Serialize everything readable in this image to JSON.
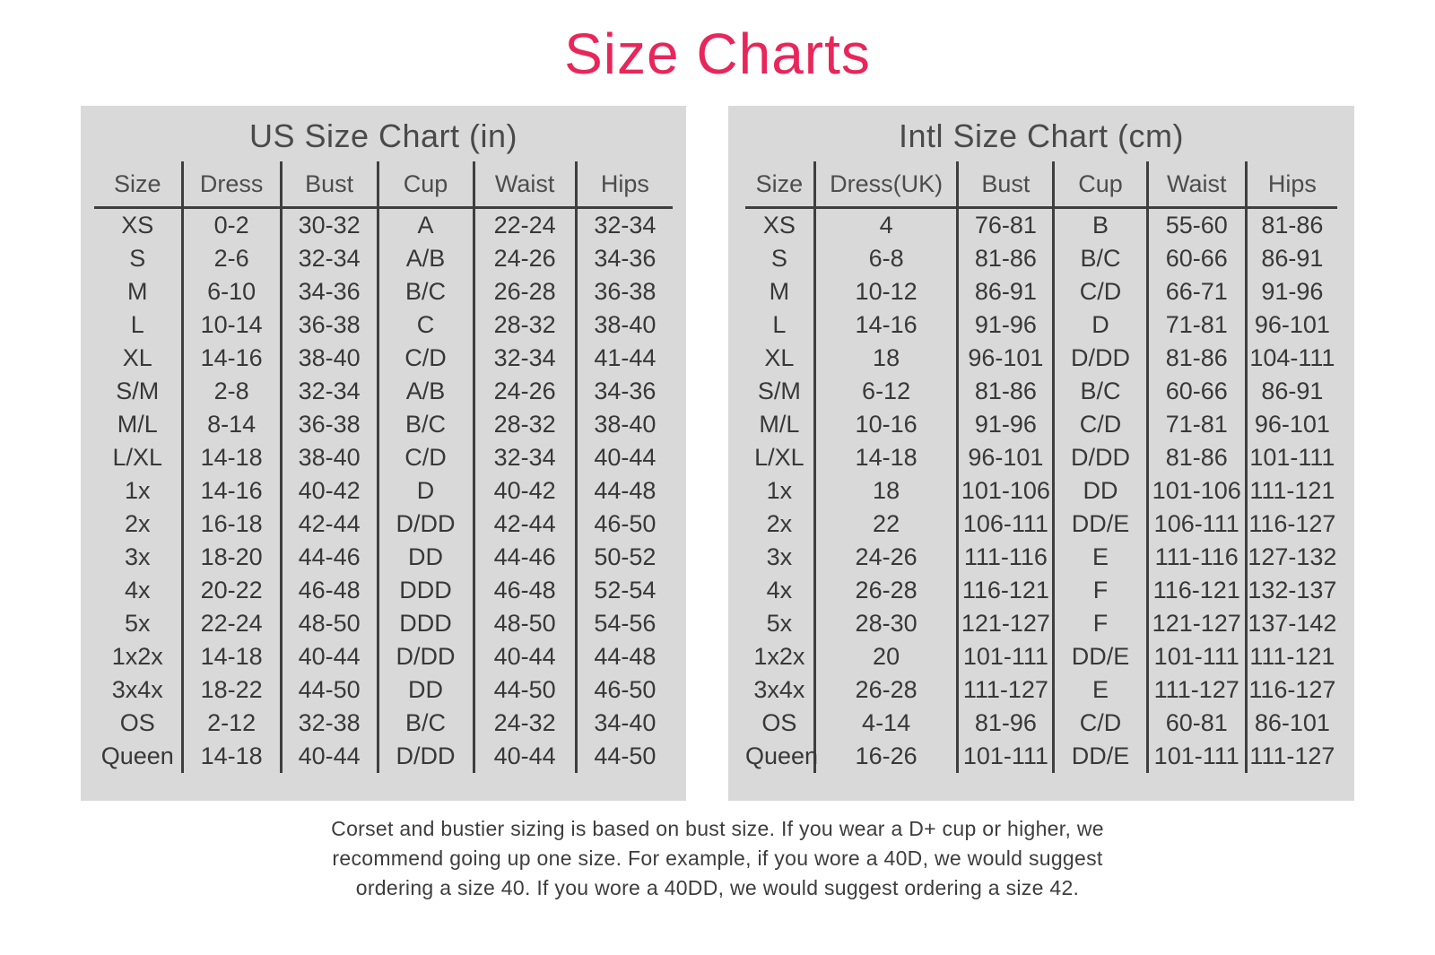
{
  "page": {
    "title": "Size Charts",
    "note_lines": [
      "Corset and bustier sizing is based on bust size. If you wear a D+ cup or higher, we",
      "recommend going up one size. For example, if you wore a 40D, we would suggest",
      "ordering a size 40. If you wore a 40DD, we would suggest ordering a size 42."
    ]
  },
  "colors": {
    "accent_pink": "#e8265a",
    "panel_background": "#d9d9d9",
    "table_line": "#3f3f3f",
    "body_text": "#383838",
    "header_text": "#4d4d4d"
  },
  "charts": [
    {
      "title": "US Size Chart (in)",
      "columns": [
        "Size",
        "Dress",
        "Bust",
        "Cup",
        "Waist",
        "Hips"
      ],
      "rows": [
        [
          "XS",
          "0-2",
          "30-32",
          "A",
          "22-24",
          "32-34"
        ],
        [
          "S",
          "2-6",
          "32-34",
          "A/B",
          "24-26",
          "34-36"
        ],
        [
          "M",
          "6-10",
          "34-36",
          "B/C",
          "26-28",
          "36-38"
        ],
        [
          "L",
          "10-14",
          "36-38",
          "C",
          "28-32",
          "38-40"
        ],
        [
          "XL",
          "14-16",
          "38-40",
          "C/D",
          "32-34",
          "41-44"
        ],
        [
          "S/M",
          "2-8",
          "32-34",
          "A/B",
          "24-26",
          "34-36"
        ],
        [
          "M/L",
          "8-14",
          "36-38",
          "B/C",
          "28-32",
          "38-40"
        ],
        [
          "L/XL",
          "14-18",
          "38-40",
          "C/D",
          "32-34",
          "40-44"
        ],
        [
          "1x",
          "14-16",
          "40-42",
          "D",
          "40-42",
          "44-48"
        ],
        [
          "2x",
          "16-18",
          "42-44",
          "D/DD",
          "42-44",
          "46-50"
        ],
        [
          "3x",
          "18-20",
          "44-46",
          "DD",
          "44-46",
          "50-52"
        ],
        [
          "4x",
          "20-22",
          "46-48",
          "DDD",
          "46-48",
          "52-54"
        ],
        [
          "5x",
          "22-24",
          "48-50",
          "DDD",
          "48-50",
          "54-56"
        ],
        [
          "1x2x",
          "14-18",
          "40-44",
          "D/DD",
          "40-44",
          "44-48"
        ],
        [
          "3x4x",
          "18-22",
          "44-50",
          "DD",
          "44-50",
          "46-50"
        ],
        [
          "OS",
          "2-12",
          "32-38",
          "B/C",
          "24-32",
          "34-40"
        ],
        [
          "Queen",
          "14-18",
          "40-44",
          "D/DD",
          "40-44",
          "44-50"
        ]
      ]
    },
    {
      "title": "Intl Size Chart (cm)",
      "columns": [
        "Size",
        "Dress(UK)",
        "Bust",
        "Cup",
        "Waist",
        "Hips"
      ],
      "rows": [
        [
          "XS",
          "4",
          "76-81",
          "B",
          "55-60",
          "81-86"
        ],
        [
          "S",
          "6-8",
          "81-86",
          "B/C",
          "60-66",
          "86-91"
        ],
        [
          "M",
          "10-12",
          "86-91",
          "C/D",
          "66-71",
          "91-96"
        ],
        [
          "L",
          "14-16",
          "91-96",
          "D",
          "71-81",
          "96-101"
        ],
        [
          "XL",
          "18",
          "96-101",
          "D/DD",
          "81-86",
          "104-111"
        ],
        [
          "S/M",
          "6-12",
          "81-86",
          "B/C",
          "60-66",
          "86-91"
        ],
        [
          "M/L",
          "10-16",
          "91-96",
          "C/D",
          "71-81",
          "96-101"
        ],
        [
          "L/XL",
          "14-18",
          "96-101",
          "D/DD",
          "81-86",
          "101-111"
        ],
        [
          "1x",
          "18",
          "101-106",
          "DD",
          "101-106",
          "111-121"
        ],
        [
          "2x",
          "22",
          "106-111",
          "DD/E",
          "106-111",
          "116-127"
        ],
        [
          "3x",
          "24-26",
          "111-116",
          "E",
          "111-116",
          "127-132"
        ],
        [
          "4x",
          "26-28",
          "116-121",
          "F",
          "116-121",
          "132-137"
        ],
        [
          "5x",
          "28-30",
          "121-127",
          "F",
          "121-127",
          "137-142"
        ],
        [
          "1x2x",
          "20",
          "101-111",
          "DD/E",
          "101-111",
          "111-121"
        ],
        [
          "3x4x",
          "26-28",
          "111-127",
          "E",
          "111-127",
          "116-127"
        ],
        [
          "OS",
          "4-14",
          "81-96",
          "C/D",
          "60-81",
          "86-101"
        ],
        [
          "Queen",
          "16-26",
          "101-111",
          "DD/E",
          "101-111",
          "111-127"
        ]
      ]
    }
  ]
}
